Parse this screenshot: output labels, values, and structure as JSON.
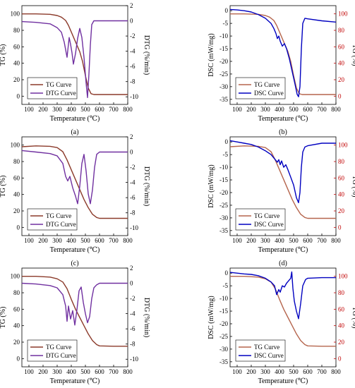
{
  "chart_data": [
    {
      "panel": "(a)",
      "type": "line",
      "xlabel": "Temperature (℃)",
      "xlim": [
        50,
        800
      ],
      "x_ticks": [
        "100",
        "200",
        "300",
        "400",
        "500",
        "600",
        "700",
        "800"
      ],
      "left_axis": {
        "label": "TG (%)",
        "ylim": [
          -10,
          110
        ],
        "ticks": [
          "0",
          "20",
          "40",
          "60",
          "80",
          "100"
        ],
        "color": "#000000"
      },
      "right_axis": {
        "label": "DTG (%/min)",
        "ylim": [
          -11,
          2
        ],
        "ticks": [
          "2",
          "0",
          "-2",
          "-4",
          "-6",
          "-8",
          "-10"
        ],
        "color": "#000000"
      },
      "legend": {
        "placement": "bottom-left",
        "entries": [
          "TG Curve",
          "DTG Curve"
        ]
      },
      "series": [
        {
          "name": "TG Curve",
          "axis": "left",
          "color": "#8b3a2a",
          "x": [
            50,
            150,
            250,
            300,
            330,
            360,
            380,
            400,
            420,
            440,
            460,
            480,
            500,
            520,
            540,
            560,
            600,
            700,
            800
          ],
          "values": [
            100,
            100,
            99.5,
            98,
            96,
            92,
            86,
            78,
            70,
            62,
            54,
            42,
            25,
            10,
            3,
            2,
            2,
            2,
            2
          ]
        },
        {
          "name": "DTG Curve",
          "axis": "right",
          "color": "#7030a0",
          "x": [
            50,
            150,
            250,
            300,
            330,
            350,
            370,
            385,
            395,
            405,
            415,
            430,
            445,
            460,
            475,
            490,
            505,
            515,
            525,
            535,
            545,
            560,
            600,
            700,
            800
          ],
          "values": [
            -0.1,
            -0.2,
            -0.4,
            -0.9,
            -1.5,
            -2.8,
            -4.8,
            -2.2,
            -3.1,
            -4.2,
            -5.7,
            -4.3,
            -2.3,
            -1.0,
            -2.2,
            -4.8,
            -8.2,
            -10.1,
            -7.0,
            -3.2,
            -0.5,
            0,
            0,
            0,
            0
          ]
        }
      ]
    },
    {
      "panel": "(b)",
      "type": "line",
      "xlabel": "Temperature (℃)",
      "xlim": [
        50,
        800
      ],
      "x_ticks": [
        "100",
        "200",
        "300",
        "400",
        "500",
        "600",
        "700",
        "800"
      ],
      "left_axis": {
        "label": "DSC (mW/mg)",
        "ylim": [
          -37,
          2
        ],
        "ticks": [
          "0",
          "-5",
          "-10",
          "-15",
          "-20",
          "-25",
          "-30",
          "-35"
        ],
        "color": "#000000"
      },
      "right_axis": {
        "label": "TG (%)",
        "ylim": [
          -10,
          110
        ],
        "ticks": [
          "100",
          "80",
          "60",
          "40",
          "20",
          "0"
        ],
        "color": "#c00000"
      },
      "legend": {
        "placement": "bottom-left",
        "entries": [
          "TG Curve",
          "DSC Curve"
        ]
      },
      "series": [
        {
          "name": "TG Curve",
          "axis": "right",
          "color": "#b5654d",
          "x": [
            50,
            150,
            250,
            300,
            330,
            360,
            380,
            400,
            420,
            440,
            460,
            480,
            500,
            520,
            540,
            560,
            600,
            700,
            800
          ],
          "values": [
            100,
            100,
            99.5,
            98,
            96,
            92,
            86,
            78,
            70,
            62,
            54,
            42,
            25,
            10,
            3,
            2,
            2,
            2,
            2
          ]
        },
        {
          "name": "DSC Curve",
          "axis": "left",
          "color": "#0000c0",
          "x": [
            50,
            100,
            150,
            200,
            250,
            300,
            340,
            360,
            375,
            385,
            395,
            405,
            420,
            435,
            450,
            470,
            490,
            510,
            525,
            535,
            545,
            555,
            565,
            580,
            600,
            700,
            800
          ],
          "values": [
            0.5,
            0.3,
            0,
            -0.5,
            -1.5,
            -3,
            -5,
            -7,
            -9,
            -11,
            -10,
            -12,
            -14,
            -13,
            -15,
            -19,
            -24,
            -29,
            -33,
            -34,
            -30,
            -15,
            -5,
            -3,
            -3.2,
            -4,
            -4.5
          ]
        }
      ]
    },
    {
      "panel": "(c)",
      "type": "line",
      "xlabel": "Temperature (℃)",
      "xlim": [
        50,
        800
      ],
      "x_ticks": [
        "100",
        "200",
        "300",
        "400",
        "500",
        "600",
        "700",
        "800"
      ],
      "left_axis": {
        "label": "TG (%)",
        "ylim": [
          -10,
          110
        ],
        "ticks": [
          "0",
          "20",
          "40",
          "60",
          "80",
          "100"
        ],
        "color": "#000000"
      },
      "right_axis": {
        "label": "DTG (%/min)",
        "ylim": [
          -11,
          2
        ],
        "ticks": [
          "2",
          "0",
          "-2",
          "-4",
          "-6",
          "-8",
          "-10"
        ],
        "color": "#000000"
      },
      "legend": {
        "placement": "bottom-left",
        "entries": [
          "TG Curve",
          "DTG Curve"
        ]
      },
      "series": [
        {
          "name": "TG Curve",
          "axis": "left",
          "color": "#8b3a2a",
          "x": [
            50,
            150,
            250,
            300,
            340,
            370,
            400,
            430,
            460,
            490,
            520,
            550,
            580,
            600,
            700,
            800
          ],
          "values": [
            98,
            99,
            98.5,
            97,
            92,
            82,
            70,
            58,
            46,
            34,
            24,
            16,
            12,
            11,
            11,
            11
          ]
        },
        {
          "name": "DTG Curve",
          "axis": "right",
          "color": "#7030a0",
          "x": [
            50,
            150,
            250,
            300,
            340,
            360,
            375,
            390,
            410,
            430,
            445,
            460,
            475,
            490,
            505,
            520,
            535,
            550,
            565,
            580,
            600,
            700,
            800
          ],
          "values": [
            0.2,
            0,
            -0.2,
            -0.5,
            -1.5,
            -3.2,
            -3.8,
            -3.2,
            -4.7,
            -5.8,
            -6.8,
            -4.5,
            -1.5,
            -0.3,
            -2.5,
            -5.5,
            -6.8,
            -5,
            -2,
            -0.3,
            0,
            0,
            0
          ]
        }
      ]
    },
    {
      "panel": "(d)",
      "type": "line",
      "xlabel": "Temperature (℃)",
      "xlim": [
        50,
        800
      ],
      "x_ticks": [
        "100",
        "200",
        "300",
        "400",
        "500",
        "600",
        "700",
        "800"
      ],
      "left_axis": {
        "label": "DSC (mW/mg)",
        "ylim": [
          -37,
          2
        ],
        "ticks": [
          "0",
          "-5",
          "-10",
          "-15",
          "-20",
          "-25",
          "-30",
          "-35"
        ],
        "color": "#000000"
      },
      "right_axis": {
        "label": "TG (%)",
        "ylim": [
          -10,
          110
        ],
        "ticks": [
          "100",
          "80",
          "60",
          "40",
          "20",
          "0"
        ],
        "color": "#c00000"
      },
      "legend": {
        "placement": "bottom-left",
        "entries": [
          "TG Curve",
          "DSC Curve"
        ]
      },
      "series": [
        {
          "name": "TG Curve",
          "axis": "right",
          "color": "#b5654d",
          "x": [
            50,
            150,
            250,
            300,
            340,
            370,
            400,
            430,
            460,
            490,
            520,
            550,
            580,
            600,
            700,
            800
          ],
          "values": [
            98,
            99,
            98.5,
            97,
            92,
            82,
            70,
            58,
            46,
            34,
            24,
            16,
            12,
            11,
            11,
            11
          ]
        },
        {
          "name": "DSC Curve",
          "axis": "left",
          "color": "#0000c0",
          "x": [
            50,
            100,
            150,
            200,
            250,
            300,
            340,
            370,
            385,
            395,
            405,
            415,
            430,
            445,
            460,
            480,
            500,
            520,
            535,
            545,
            555,
            565,
            580,
            600,
            700,
            800
          ],
          "values": [
            0.5,
            0,
            -0.5,
            -1,
            -2,
            -3.5,
            -5,
            -7,
            -8,
            -7,
            -9,
            -7.5,
            -10,
            -9,
            -11,
            -14,
            -17,
            -22,
            -24,
            -20,
            -10,
            -4,
            -2,
            -1.5,
            -0.5,
            -0.5
          ]
        }
      ]
    },
    {
      "panel": "(e)",
      "type": "line",
      "xlabel": "Temperature (℃)",
      "xlim": [
        50,
        800
      ],
      "x_ticks": [
        "100",
        "200",
        "300",
        "400",
        "500",
        "600",
        "700",
        "800"
      ],
      "left_axis": {
        "label": "TG (%)",
        "ylim": [
          -10,
          110
        ],
        "ticks": [
          "0",
          "20",
          "40",
          "60",
          "80",
          "100"
        ],
        "color": "#000000"
      },
      "right_axis": {
        "label": "DTG (%/min)",
        "ylim": [
          -11,
          2
        ],
        "ticks": [
          "2",
          "0",
          "-2",
          "-4",
          "-6",
          "-8",
          "-10"
        ],
        "color": "#000000"
      },
      "legend": {
        "placement": "bottom-left",
        "entries": [
          "TG Curve",
          "DTG Curve"
        ]
      },
      "series": [
        {
          "name": "TG Curve",
          "axis": "left",
          "color": "#8b3a2a",
          "x": [
            50,
            150,
            250,
            300,
            340,
            370,
            400,
            430,
            460,
            490,
            520,
            550,
            580,
            600,
            700,
            800
          ],
          "values": [
            100,
            100,
            99,
            97,
            93,
            85,
            72,
            60,
            50,
            40,
            30,
            22,
            17,
            15.5,
            15,
            15
          ]
        },
        {
          "name": "DTG Curve",
          "axis": "right",
          "color": "#7030a0",
          "x": [
            50,
            150,
            250,
            300,
            340,
            360,
            370,
            380,
            395,
            410,
            425,
            440,
            455,
            470,
            485,
            500,
            515,
            530,
            545,
            560,
            580,
            600,
            700,
            800
          ],
          "values": [
            0,
            -0.1,
            -0.3,
            -0.6,
            -1.5,
            -3,
            -5,
            -3,
            -4.7,
            -3.6,
            -5.5,
            -3.5,
            -1,
            -0.5,
            -2.5,
            -4,
            -5.2,
            -4.4,
            -2,
            -0.6,
            -0.2,
            0,
            0,
            0
          ]
        }
      ]
    },
    {
      "panel": "(f)",
      "type": "line",
      "xlabel": "Temperature (℃)",
      "xlim": [
        50,
        800
      ],
      "x_ticks": [
        "100",
        "200",
        "300",
        "400",
        "500",
        "600",
        "700",
        "800"
      ],
      "left_axis": {
        "label": "DSC (mW/mg)",
        "ylim": [
          -37,
          2
        ],
        "ticks": [
          "0",
          "-5",
          "-10",
          "-15",
          "-20",
          "-25",
          "-30",
          "-35"
        ],
        "color": "#000000"
      },
      "right_axis": {
        "label": "TG (%)",
        "ylim": [
          -10,
          110
        ],
        "ticks": [
          "100",
          "80",
          "60",
          "40",
          "20",
          "0"
        ],
        "color": "#c00000"
      },
      "legend": {
        "placement": "bottom-left",
        "entries": [
          "TG Curve",
          "DSC Curve"
        ]
      },
      "series": [
        {
          "name": "TG Curve",
          "axis": "right",
          "color": "#b5654d",
          "x": [
            50,
            150,
            250,
            300,
            340,
            370,
            400,
            430,
            460,
            490,
            520,
            550,
            580,
            600,
            700,
            800
          ],
          "values": [
            100,
            100,
            99,
            97,
            93,
            85,
            72,
            60,
            50,
            40,
            30,
            22,
            17,
            15.5,
            15,
            15
          ]
        },
        {
          "name": "DSC Curve",
          "axis": "left",
          "color": "#0000c0",
          "x": [
            50,
            100,
            150,
            200,
            250,
            300,
            340,
            365,
            380,
            395,
            405,
            420,
            435,
            450,
            465,
            480,
            487,
            495,
            505,
            520,
            535,
            550,
            565,
            585,
            600,
            700,
            800
          ],
          "values": [
            0.3,
            0,
            -0.3,
            -0.5,
            -1,
            -2,
            -3.5,
            -5,
            -8.5,
            -6.5,
            -7.5,
            -5,
            -5.5,
            -4,
            -3,
            -2,
            0.5,
            -6,
            -11,
            -15,
            -18,
            -12,
            -5,
            -2.5,
            -2,
            -1.8,
            -1.8
          ]
        }
      ]
    }
  ]
}
